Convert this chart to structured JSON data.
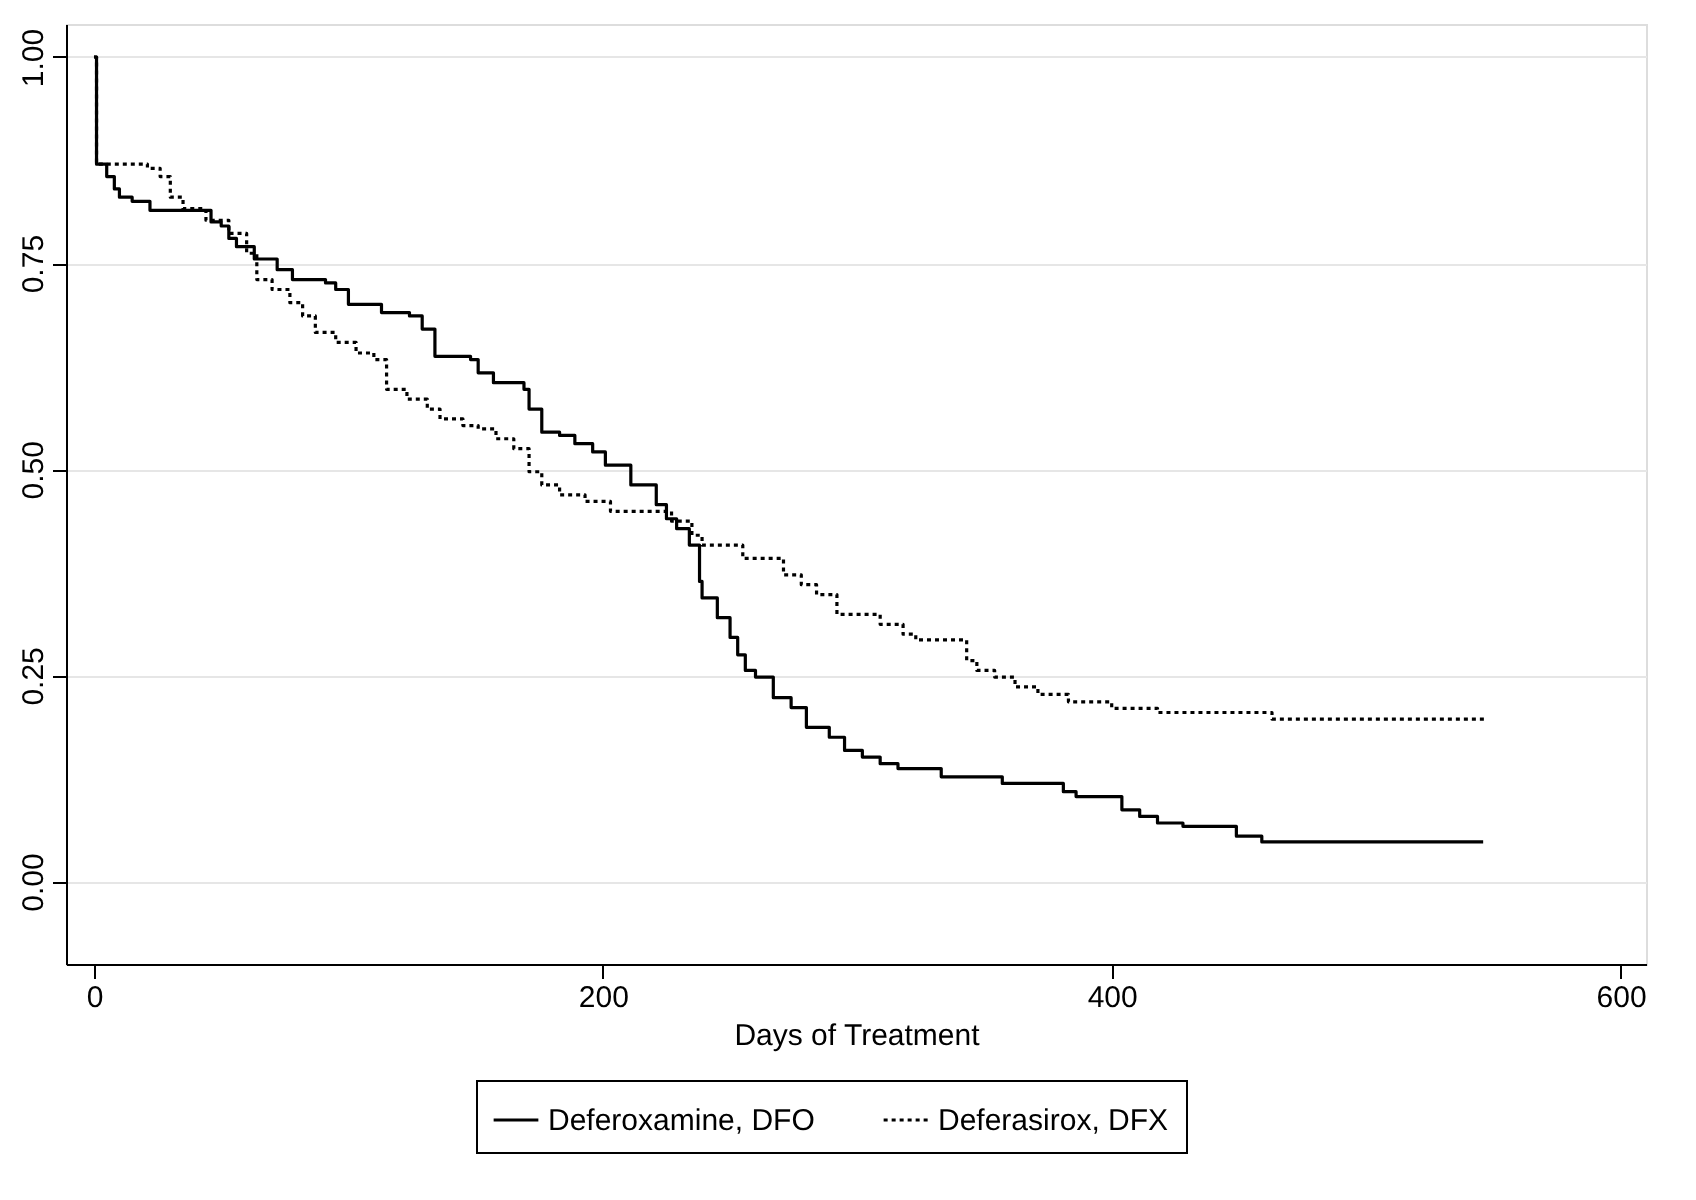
{
  "chart_data": {
    "type": "step",
    "xlabel": "Days of Treatment",
    "xlim": [
      -11,
      610
    ],
    "xticks": [
      0,
      200,
      400,
      600
    ],
    "ylim": [
      -0.1,
      1.04
    ],
    "yticks": [
      {
        "value": 0,
        "label": "0.00"
      },
      {
        "value": 0.25,
        "label": "0.25"
      },
      {
        "value": 0.5,
        "label": "0.50"
      },
      {
        "value": 0.75,
        "label": "0.75"
      },
      {
        "value": 1,
        "label": "1.00"
      }
    ],
    "grid": "y",
    "legend": "bottom",
    "series": [
      {
        "name": "Deferoxamine, DFO",
        "color": "#000000",
        "line_style": "solid",
        "x": [
          0,
          1,
          5,
          8,
          10,
          15,
          22,
          46,
          50,
          53,
          56,
          63,
          72,
          78,
          91,
          95,
          100,
          113,
          124,
          129,
          134,
          148,
          151,
          157,
          169,
          171,
          176,
          183,
          189,
          196,
          201,
          211,
          221,
          225,
          229,
          234,
          238,
          239,
          245,
          250,
          253,
          256,
          260,
          267,
          274,
          280,
          289,
          295,
          302,
          309,
          316,
          333,
          357,
          381,
          386,
          404,
          411,
          418,
          428,
          449,
          459,
          546
        ],
        "values": [
          1.0,
          0.87,
          0.855,
          0.84,
          0.83,
          0.825,
          0.814,
          0.8,
          0.795,
          0.78,
          0.77,
          0.755,
          0.742,
          0.73,
          0.726,
          0.718,
          0.7,
          0.69,
          0.686,
          0.67,
          0.637,
          0.633,
          0.617,
          0.605,
          0.597,
          0.573,
          0.545,
          0.541,
          0.531,
          0.521,
          0.505,
          0.481,
          0.457,
          0.44,
          0.428,
          0.408,
          0.364,
          0.344,
          0.32,
          0.296,
          0.275,
          0.256,
          0.248,
          0.223,
          0.211,
          0.187,
          0.175,
          0.159,
          0.151,
          0.143,
          0.137,
          0.127,
          0.119,
          0.109,
          0.103,
          0.087,
          0.079,
          0.071,
          0.067,
          0.055,
          0.048,
          0.048
        ]
      },
      {
        "name": "Deferasirox, DFX",
        "color": "#000000",
        "line_style": "dotted",
        "x": [
          0,
          1,
          21,
          26,
          30,
          35,
          44,
          53,
          60,
          64,
          70,
          77,
          82,
          87,
          95,
          103,
          110,
          115,
          123,
          131,
          136,
          145,
          151,
          158,
          165,
          171,
          176,
          183,
          193,
          203,
          227,
          235,
          239,
          255,
          271,
          278,
          284,
          292,
          309,
          318,
          323,
          343,
          347,
          354,
          362,
          371,
          383,
          400,
          418,
          463,
          547
        ],
        "values": [
          1.0,
          0.87,
          0.865,
          0.855,
          0.83,
          0.816,
          0.802,
          0.786,
          0.762,
          0.73,
          0.718,
          0.702,
          0.686,
          0.666,
          0.654,
          0.641,
          0.633,
          0.597,
          0.585,
          0.573,
          0.561,
          0.553,
          0.549,
          0.537,
          0.525,
          0.497,
          0.481,
          0.469,
          0.461,
          0.449,
          0.437,
          0.42,
          0.408,
          0.392,
          0.372,
          0.36,
          0.348,
          0.324,
          0.312,
          0.3,
          0.293,
          0.268,
          0.256,
          0.248,
          0.236,
          0.227,
          0.218,
          0.21,
          0.205,
          0.197,
          0.197
        ]
      }
    ]
  }
}
